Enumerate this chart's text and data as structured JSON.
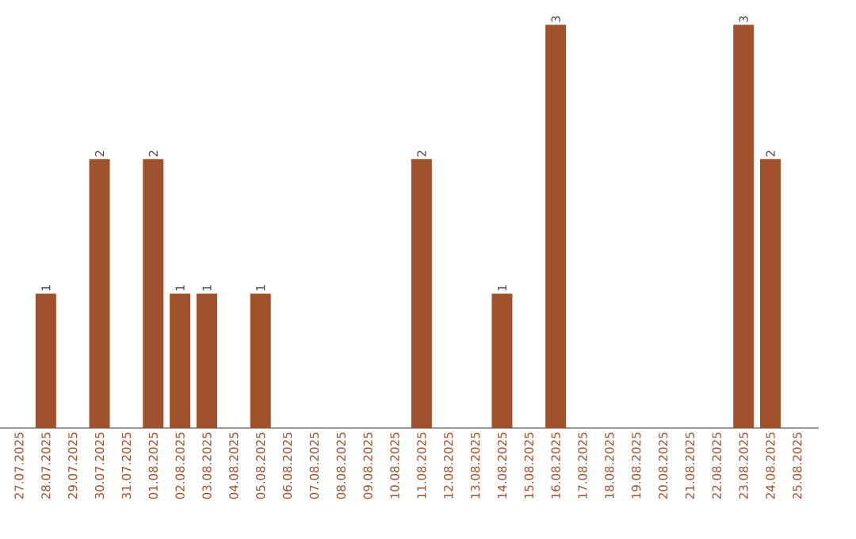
{
  "chart_data": {
    "type": "bar",
    "categories": [
      "27.07.2025",
      "28.07.2025",
      "29.07.2025",
      "30.07.2025",
      "31.07.2025",
      "01.08.2025",
      "02.08.2025",
      "03.08.2025",
      "04.08.2025",
      "05.08.2025",
      "06.08.2025",
      "07.08.2025",
      "08.08.2025",
      "09.08.2025",
      "10.08.2025",
      "11.08.2025",
      "12.08.2025",
      "13.08.2025",
      "14.08.2025",
      "15.08.2025",
      "16.08.2025",
      "17.08.2025",
      "18.08.2025",
      "19.08.2025",
      "20.08.2025",
      "21.08.2025",
      "22.08.2025",
      "23.08.2025",
      "24.08.2025",
      "25.08.2025"
    ],
    "values": [
      0,
      1,
      0,
      2,
      0,
      2,
      1,
      1,
      0,
      1,
      0,
      0,
      0,
      0,
      0,
      2,
      0,
      0,
      1,
      0,
      3,
      0,
      0,
      0,
      0,
      0,
      0,
      3,
      2,
      0
    ],
    "value_labels": [
      null,
      "1",
      null,
      "2",
      null,
      "2",
      "1",
      "1",
      null,
      "1",
      null,
      null,
      null,
      null,
      null,
      "2",
      null,
      null,
      "1",
      null,
      "3",
      null,
      null,
      null,
      null,
      null,
      null,
      "3",
      "2",
      null
    ],
    "color": "#a0522d",
    "tick_labels": "x"
  }
}
